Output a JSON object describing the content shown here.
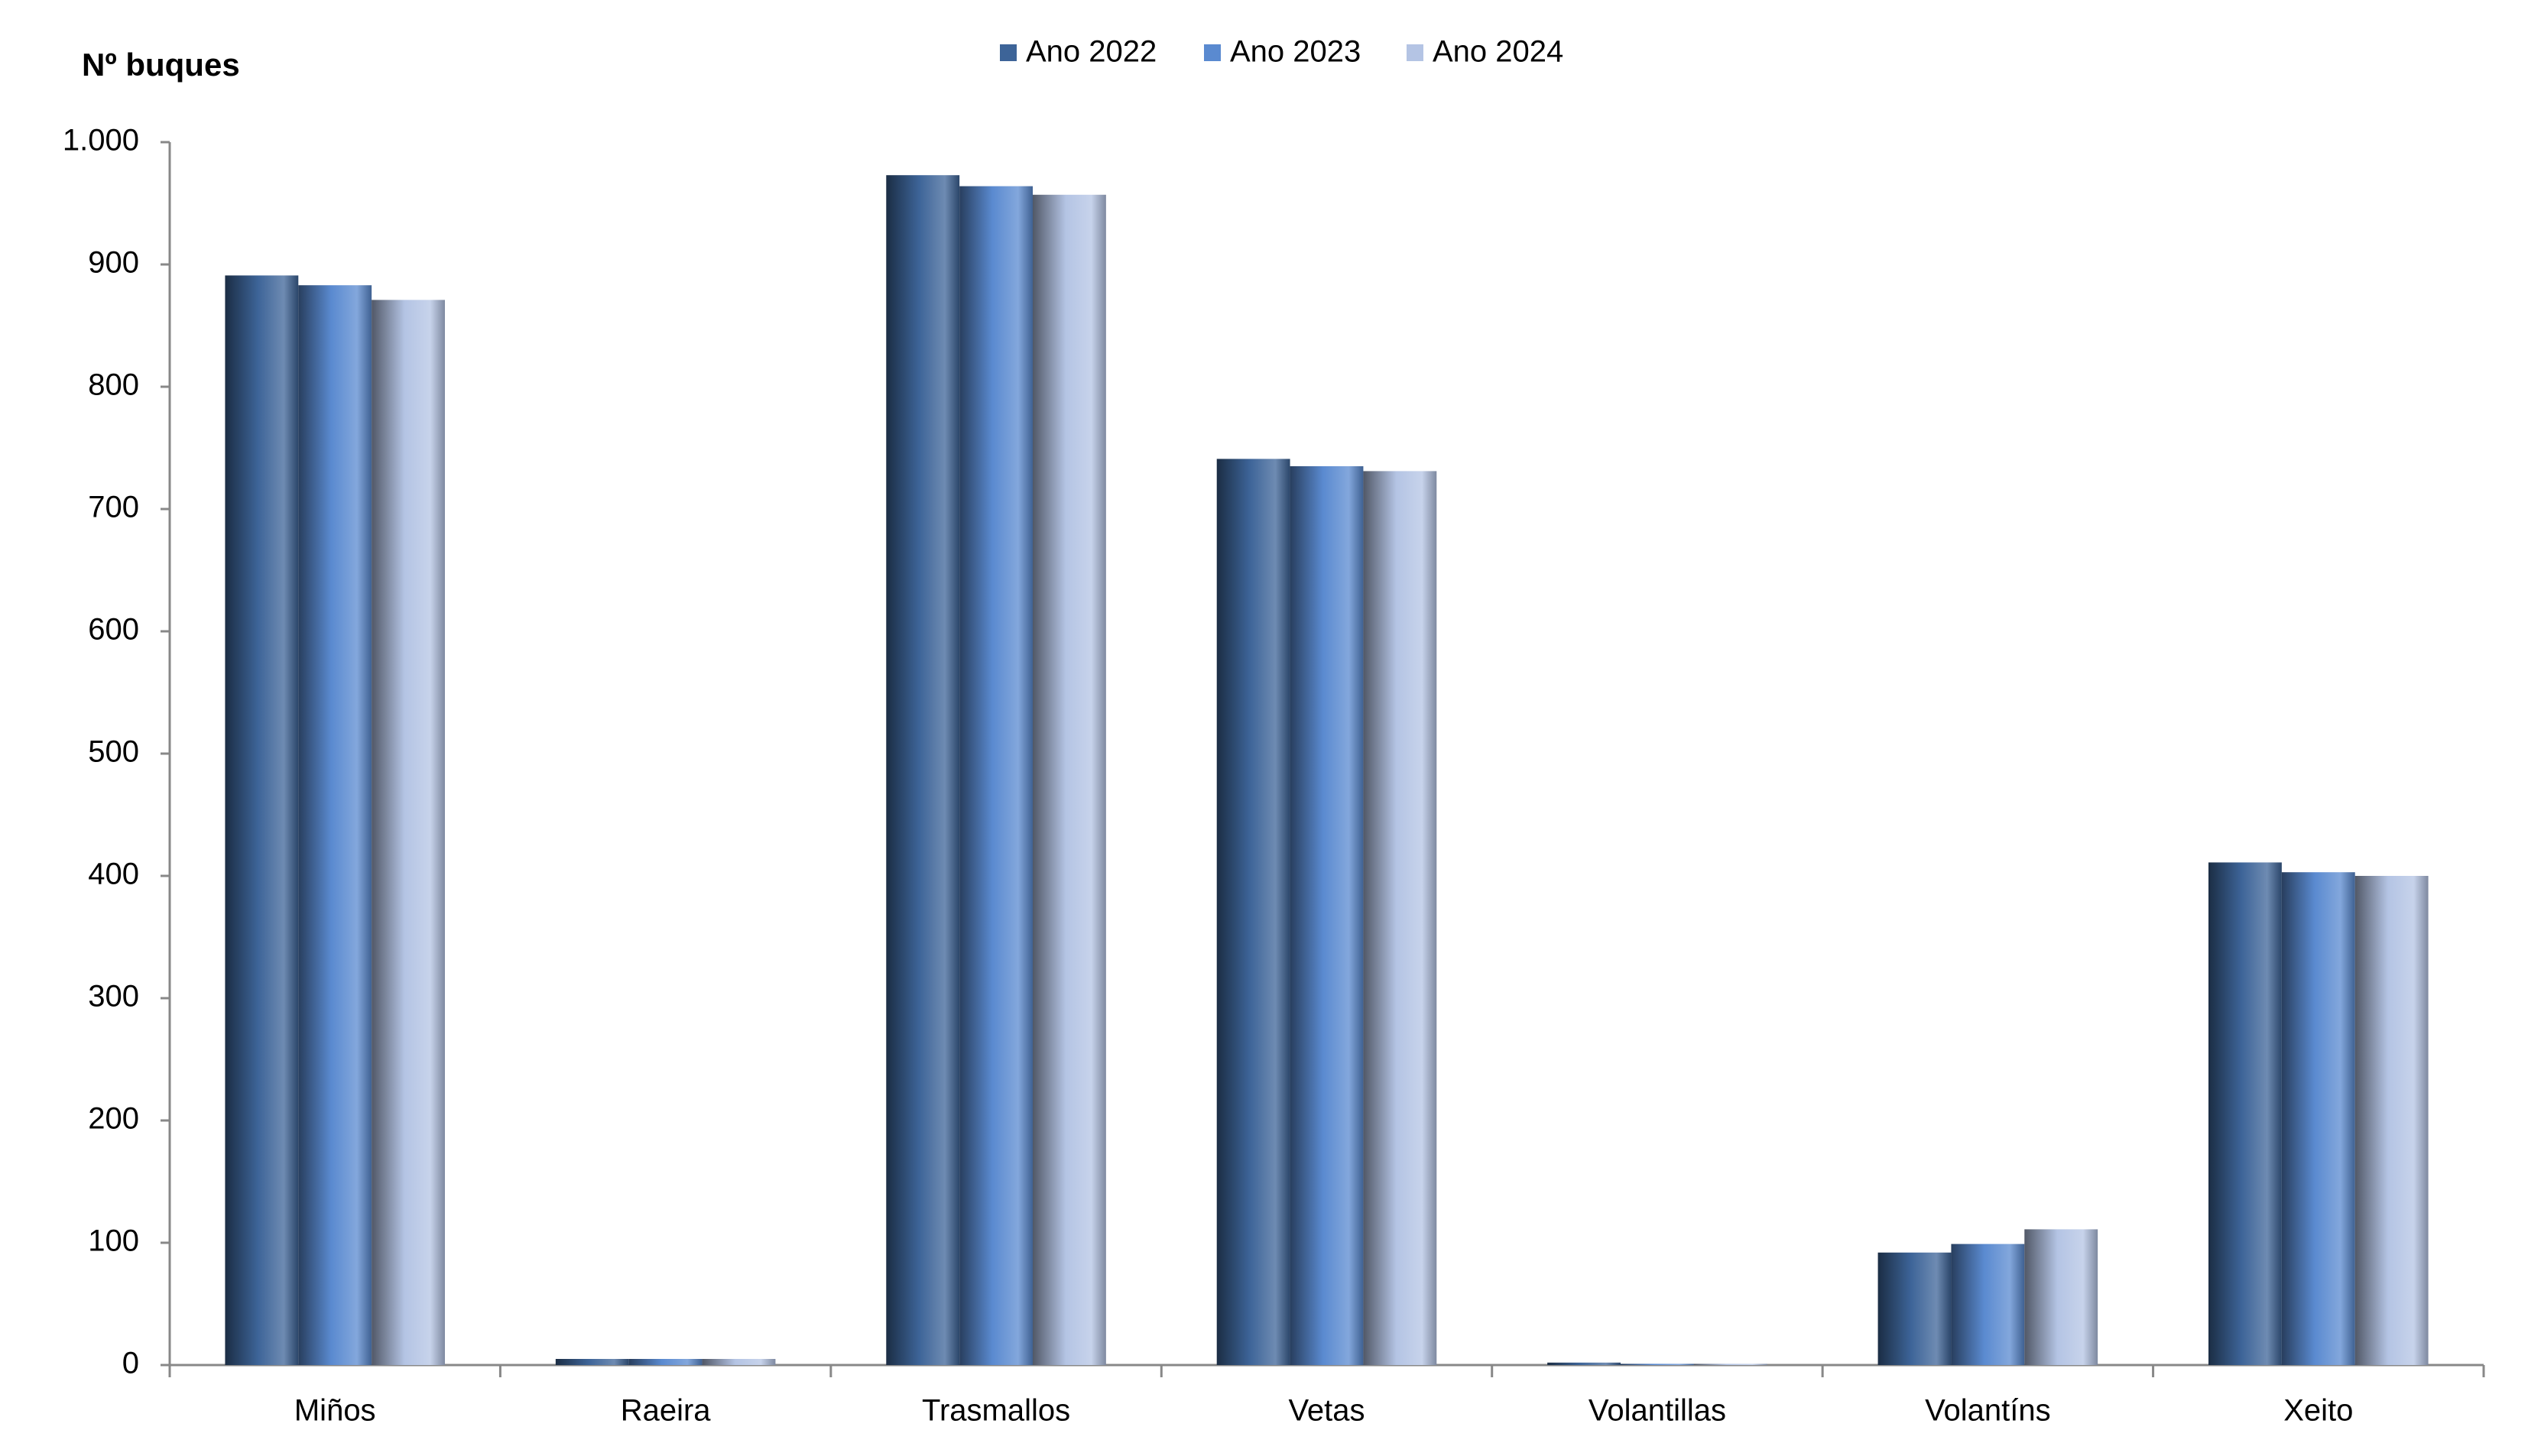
{
  "chart_data": {
    "type": "bar",
    "y_label": "Nº  buques",
    "categories": [
      "Miños",
      "Raeira",
      "Trasmallos",
      "Vetas",
      "Volantillas",
      "Volantíns",
      "Xeito"
    ],
    "series": [
      {
        "name": "Ano 2022",
        "color": "#3d6498",
        "values": [
          891,
          5,
          973,
          741,
          2,
          92,
          411
        ]
      },
      {
        "name": "Ano 2023",
        "color": "#5a8ad0",
        "values": [
          883,
          5,
          964,
          735,
          1,
          99,
          403
        ]
      },
      {
        "name": "Ano 2024",
        "color": "#b4c4e4",
        "values": [
          871,
          5,
          957,
          731,
          1,
          111,
          400
        ]
      }
    ],
    "ylim": [
      0,
      1000
    ],
    "yticks": [
      0,
      100,
      200,
      300,
      400,
      500,
      600,
      700,
      800,
      900,
      {
        "value": 1000,
        "label": "1.000"
      }
    ],
    "grid": false,
    "legend": "top"
  }
}
